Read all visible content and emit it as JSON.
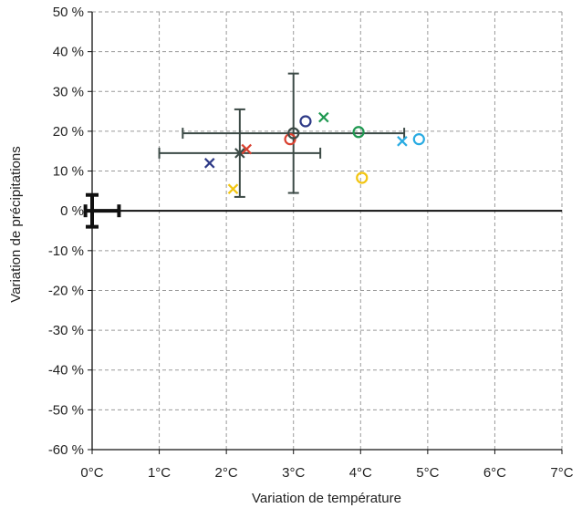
{
  "chart_data": {
    "type": "scatter",
    "xlabel": "Variation de température",
    "ylabel": "Variation de précipitations",
    "xlim": [
      0,
      7
    ],
    "ylim": [
      -60,
      50
    ],
    "x_ticks": [
      {
        "value": 0,
        "label": "0°C"
      },
      {
        "value": 1,
        "label": "1°C"
      },
      {
        "value": 2,
        "label": "2°C"
      },
      {
        "value": 3,
        "label": "3°C"
      },
      {
        "value": 4,
        "label": "4°C"
      },
      {
        "value": 5,
        "label": "5°C"
      },
      {
        "value": 6,
        "label": "6°C"
      },
      {
        "value": 7,
        "label": "7°C"
      }
    ],
    "y_ticks": [
      {
        "value": 50,
        "label": "50 %"
      },
      {
        "value": 40,
        "label": "40 %"
      },
      {
        "value": 30,
        "label": "30 %"
      },
      {
        "value": 20,
        "label": "20 %"
      },
      {
        "value": 10,
        "label": "10 %"
      },
      {
        "value": 0,
        "label": "0 %"
      },
      {
        "value": -10,
        "label": "-10 %"
      },
      {
        "value": -20,
        "label": "-20 %"
      },
      {
        "value": -30,
        "label": "-30 %"
      },
      {
        "value": -40,
        "label": "-40 %"
      },
      {
        "value": -50,
        "label": "-50 %"
      },
      {
        "value": -60,
        "label": "-60 %"
      }
    ],
    "grid": true,
    "points": [
      {
        "x": 1.75,
        "y": 12,
        "marker": "x",
        "color": "#2e3a87"
      },
      {
        "x": 2.1,
        "y": 5.5,
        "marker": "x",
        "color": "#f2c511"
      },
      {
        "x": 2.3,
        "y": 15.5,
        "marker": "x",
        "color": "#d94130"
      },
      {
        "x": 3.45,
        "y": 23.5,
        "marker": "x",
        "color": "#1e9850"
      },
      {
        "x": 4.62,
        "y": 17.5,
        "marker": "x",
        "color": "#29abe2"
      },
      {
        "x": 2.95,
        "y": 18,
        "marker": "o",
        "color": "#d94130"
      },
      {
        "x": 3.18,
        "y": 22.5,
        "marker": "o",
        "color": "#2e3a87"
      },
      {
        "x": 3.97,
        "y": 19.8,
        "marker": "o",
        "color": "#1e9850"
      },
      {
        "x": 4.02,
        "y": 8.3,
        "marker": "o",
        "color": "#f2c511"
      },
      {
        "x": 4.87,
        "y": 18,
        "marker": "o",
        "color": "#29abe2"
      }
    ],
    "means": [
      {
        "x": 2.2,
        "y": 14.5,
        "marker": "x",
        "color": "#3c4a46",
        "x_range": [
          1.0,
          3.4
        ],
        "y_range": [
          3.5,
          25.5
        ]
      },
      {
        "x": 3.0,
        "y": 19.5,
        "marker": "o",
        "color": "#3c4a46",
        "x_range": [
          1.35,
          4.65
        ],
        "y_range": [
          4.5,
          34.5
        ]
      }
    ],
    "reference": {
      "x": 0,
      "y": 0,
      "x_range": [
        -0.1,
        0.4
      ],
      "y_range": [
        -4,
        4
      ],
      "color": "#111111"
    }
  }
}
